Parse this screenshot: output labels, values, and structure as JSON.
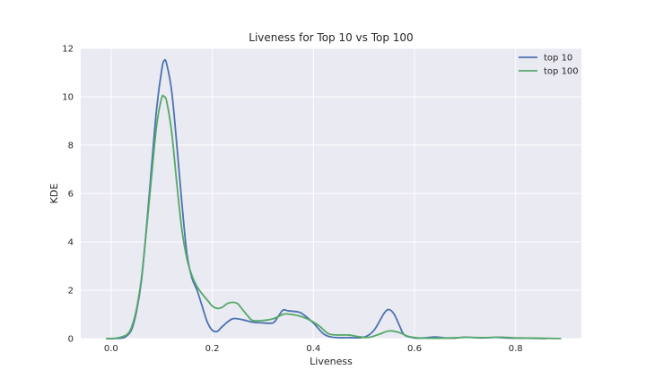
{
  "chart_data": {
    "type": "line",
    "title": "Liveness for Top 10 vs Top 100",
    "xlabel": "Liveness",
    "ylabel": "KDE",
    "xlim": [
      -0.06,
      0.93
    ],
    "ylim": [
      0,
      12
    ],
    "x_ticks": [
      0.0,
      0.2,
      0.4,
      0.6,
      0.8
    ],
    "x_tick_labels": [
      "0.0",
      "0.2",
      "0.4",
      "0.6",
      "0.8"
    ],
    "y_ticks": [
      0,
      2,
      4,
      6,
      8,
      10,
      12
    ],
    "y_tick_labels": [
      "0",
      "2",
      "4",
      "6",
      "8",
      "10",
      "12"
    ],
    "grid": true,
    "legend_position": "top-right",
    "colors": {
      "background": "#eaeaf2",
      "grid": "#ffffff"
    },
    "series": [
      {
        "name": "top 10",
        "color": "#4c72b0",
        "points": [
          [
            -0.01,
            0
          ],
          [
            0.02,
            0.02
          ],
          [
            0.03,
            0.1
          ],
          [
            0.04,
            0.35
          ],
          [
            0.05,
            1.1
          ],
          [
            0.06,
            2.4
          ],
          [
            0.07,
            4.6
          ],
          [
            0.08,
            7.1
          ],
          [
            0.09,
            9.5
          ],
          [
            0.1,
            11.1
          ],
          [
            0.105,
            11.5
          ],
          [
            0.11,
            11.35
          ],
          [
            0.12,
            10.2
          ],
          [
            0.13,
            8.0
          ],
          [
            0.14,
            5.6
          ],
          [
            0.15,
            3.5
          ],
          [
            0.16,
            2.5
          ],
          [
            0.17,
            2.0
          ],
          [
            0.18,
            1.35
          ],
          [
            0.19,
            0.7
          ],
          [
            0.2,
            0.35
          ],
          [
            0.21,
            0.3
          ],
          [
            0.22,
            0.5
          ],
          [
            0.24,
            0.82
          ],
          [
            0.26,
            0.78
          ],
          [
            0.28,
            0.68
          ],
          [
            0.3,
            0.65
          ],
          [
            0.32,
            0.65
          ],
          [
            0.33,
            0.9
          ],
          [
            0.34,
            1.18
          ],
          [
            0.35,
            1.15
          ],
          [
            0.37,
            1.1
          ],
          [
            0.38,
            1.0
          ],
          [
            0.4,
            0.65
          ],
          [
            0.42,
            0.2
          ],
          [
            0.44,
            0.05
          ],
          [
            0.47,
            0.04
          ],
          [
            0.5,
            0.06
          ],
          [
            0.52,
            0.35
          ],
          [
            0.54,
            1.05
          ],
          [
            0.55,
            1.2
          ],
          [
            0.56,
            1.0
          ],
          [
            0.57,
            0.55
          ],
          [
            0.58,
            0.15
          ],
          [
            0.6,
            0.03
          ],
          [
            0.62,
            0.03
          ],
          [
            0.64,
            0.07
          ],
          [
            0.66,
            0.03
          ],
          [
            0.68,
            0.02
          ],
          [
            0.7,
            0.06
          ],
          [
            0.73,
            0.03
          ],
          [
            0.76,
            0.05
          ],
          [
            0.79,
            0.02
          ],
          [
            0.82,
            0.02
          ],
          [
            0.86,
            0.0
          ]
        ]
      },
      {
        "name": "top 100",
        "color": "#55a868",
        "points": [
          [
            -0.01,
            0
          ],
          [
            0.01,
            0.02
          ],
          [
            0.03,
            0.15
          ],
          [
            0.04,
            0.45
          ],
          [
            0.05,
            1.2
          ],
          [
            0.06,
            2.5
          ],
          [
            0.07,
            4.5
          ],
          [
            0.08,
            6.7
          ],
          [
            0.09,
            8.8
          ],
          [
            0.1,
            9.95
          ],
          [
            0.105,
            10.0
          ],
          [
            0.11,
            9.8
          ],
          [
            0.12,
            8.5
          ],
          [
            0.13,
            6.4
          ],
          [
            0.14,
            4.5
          ],
          [
            0.15,
            3.3
          ],
          [
            0.16,
            2.6
          ],
          [
            0.17,
            2.15
          ],
          [
            0.18,
            1.85
          ],
          [
            0.19,
            1.6
          ],
          [
            0.2,
            1.35
          ],
          [
            0.21,
            1.25
          ],
          [
            0.22,
            1.3
          ],
          [
            0.23,
            1.45
          ],
          [
            0.24,
            1.5
          ],
          [
            0.25,
            1.45
          ],
          [
            0.26,
            1.2
          ],
          [
            0.27,
            0.95
          ],
          [
            0.28,
            0.75
          ],
          [
            0.3,
            0.75
          ],
          [
            0.32,
            0.82
          ],
          [
            0.34,
            1.0
          ],
          [
            0.35,
            1.02
          ],
          [
            0.37,
            0.95
          ],
          [
            0.39,
            0.8
          ],
          [
            0.41,
            0.55
          ],
          [
            0.43,
            0.2
          ],
          [
            0.45,
            0.15
          ],
          [
            0.47,
            0.15
          ],
          [
            0.49,
            0.08
          ],
          [
            0.51,
            0.05
          ],
          [
            0.53,
            0.18
          ],
          [
            0.55,
            0.32
          ],
          [
            0.57,
            0.25
          ],
          [
            0.59,
            0.08
          ],
          [
            0.62,
            0.02
          ],
          [
            0.66,
            0.02
          ],
          [
            0.7,
            0.05
          ],
          [
            0.74,
            0.04
          ],
          [
            0.77,
            0.06
          ],
          [
            0.8,
            0.03
          ],
          [
            0.84,
            0.02
          ],
          [
            0.89,
            0.0
          ]
        ]
      }
    ]
  }
}
